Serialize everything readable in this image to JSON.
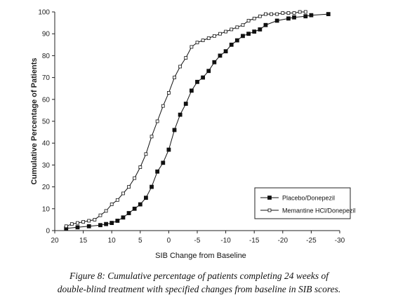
{
  "chart_data": {
    "type": "line",
    "ylabel": "Cumulative Percentage of Patients",
    "xlabel": "SIB Change from Baseline",
    "xlim": [
      20,
      -30
    ],
    "ylim": [
      0,
      100
    ],
    "x_ticks": [
      20,
      15,
      10,
      5,
      0,
      -5,
      -10,
      -15,
      -20,
      -25,
      -30
    ],
    "x_tick_labels": [
      "20",
      "15",
      "10",
      "5",
      "0",
      "-5",
      "-10",
      "-15",
      "-20",
      "-25",
      "-30"
    ],
    "y_ticks": [
      0,
      10,
      20,
      30,
      40,
      50,
      60,
      70,
      80,
      90,
      100
    ],
    "legend_position": "bottom-right",
    "series": [
      {
        "name": "Placebo/Donepezil",
        "marker": "filled-square",
        "color": "#111111",
        "x": [
          18,
          16,
          14,
          12,
          11,
          10,
          9,
          8,
          7,
          6,
          5,
          4,
          3,
          2,
          1,
          0,
          -1,
          -2,
          -3,
          -4,
          -5,
          -6,
          -7,
          -8,
          -9,
          -10,
          -11,
          -12,
          -13,
          -14,
          -15,
          -16,
          -17,
          -19,
          -21,
          -22,
          -24,
          -25,
          -28
        ],
        "y": [
          1,
          1.5,
          2,
          2.5,
          3,
          3.5,
          4.5,
          6,
          8,
          10,
          12,
          15,
          20,
          27,
          31,
          37,
          46,
          53,
          58,
          64,
          68,
          70,
          73,
          77,
          80,
          82,
          85,
          87,
          89,
          90,
          91,
          92,
          94,
          96,
          97,
          97.5,
          98,
          98.5,
          99
        ]
      },
      {
        "name": "Memantine HCl/Donepezil",
        "marker": "open-square",
        "color": "#111111",
        "x": [
          18,
          17,
          16,
          15,
          14,
          13,
          12,
          11,
          10,
          9,
          8,
          7,
          6,
          5,
          4,
          3,
          2,
          1,
          0,
          -1,
          -2,
          -3,
          -4,
          -5,
          -6,
          -7,
          -8,
          -9,
          -10,
          -11,
          -12,
          -13,
          -14,
          -15,
          -16,
          -17,
          -18,
          -19,
          -20,
          -21,
          -22,
          -23,
          -24
        ],
        "y": [
          2,
          3,
          3.5,
          4,
          4.5,
          5,
          7,
          9,
          12,
          14,
          17,
          20,
          24,
          29,
          35,
          43,
          50,
          57,
          63,
          70,
          75,
          79,
          84,
          86,
          87,
          88,
          89,
          90,
          91,
          92,
          93,
          94,
          96,
          97,
          98,
          99,
          99,
          99,
          99.5,
          99.5,
          99.5,
          100,
          100
        ]
      }
    ]
  },
  "caption": {
    "line1": "Figure 8: Cumulative percentage of patients completing 24 weeks of",
    "line2": "double-blind treatment with specified changes from baseline in SIB scores."
  }
}
